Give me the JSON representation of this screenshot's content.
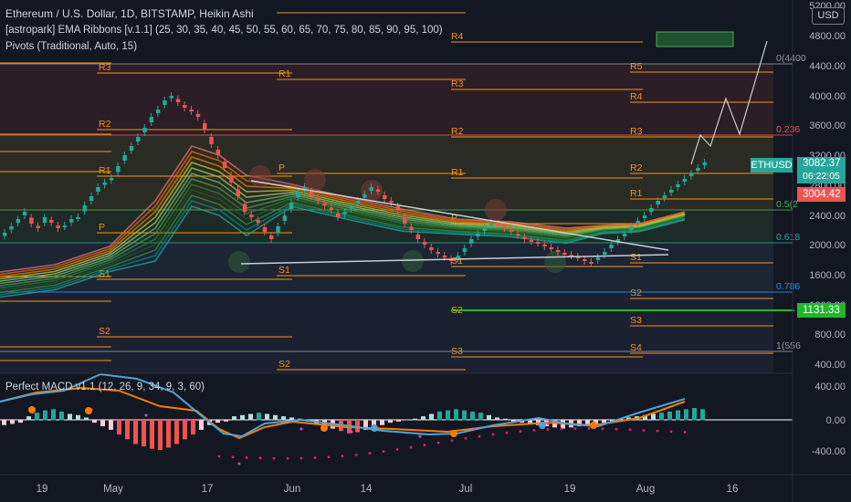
{
  "legend": {
    "main_title": "Ethereum / U.S. Dollar, 1D, BITSTAMP, Heikin Ashi",
    "ema_ribbons": "[astropark] EMA Ribbons [v.1.1] (25, 30, 35, 40, 45, 50, 55, 60, 65, 70, 75, 80, 85, 90, 95, 100)",
    "pivots": "Pivots (Traditional, Auto, 15)",
    "macd": "Perfect MACD v1.1 (12, 26, 9, 34, 9, 3, 60)"
  },
  "currency_button": "USD",
  "price_axis": {
    "labels": [
      "5200.00",
      "4800.00",
      "4400.00",
      "4000.00",
      "3600.00",
      "3200.00",
      "2800.00",
      "2400.00",
      "2000.00",
      "1600.00",
      "1200.00",
      "800.00",
      "400.00"
    ],
    "ticker_tag": "ETHUSD",
    "last_price": "3082.37",
    "countdown": "06:22:05",
    "red_tag": "3004.42",
    "green_tag": "1131.33"
  },
  "macd_axis": {
    "labels": [
      "400.00",
      "0.00",
      "-400.00"
    ]
  },
  "time_axis": {
    "labels": [
      "19",
      "May",
      "17",
      "Jun",
      "14",
      "Jul",
      "19",
      "Aug",
      "16"
    ]
  },
  "pivot_labels": {
    "p1": [
      "R3",
      "R2",
      "R1",
      "P",
      "S1",
      "S2"
    ],
    "p2": [
      "R1",
      "P",
      "S1",
      "S2"
    ],
    "p3": [
      "R4",
      "R3",
      "R2",
      "R1",
      "P",
      "S1",
      "S2",
      "S3"
    ],
    "p4": [
      "R5",
      "R4",
      "R3",
      "R2",
      "R1",
      "S1",
      "S2",
      "S3",
      "S4"
    ]
  },
  "fib_labels": [
    "0(4400",
    "0.236",
    "0.5(2",
    "0.618",
    "0.786",
    "1(556"
  ],
  "colors": {
    "background": "#131722",
    "bull": "#26a69a",
    "bear": "#ef5350",
    "pivot": "#f7931a",
    "fib": "#2962ff",
    "green_line": "#1fb82b"
  }
}
